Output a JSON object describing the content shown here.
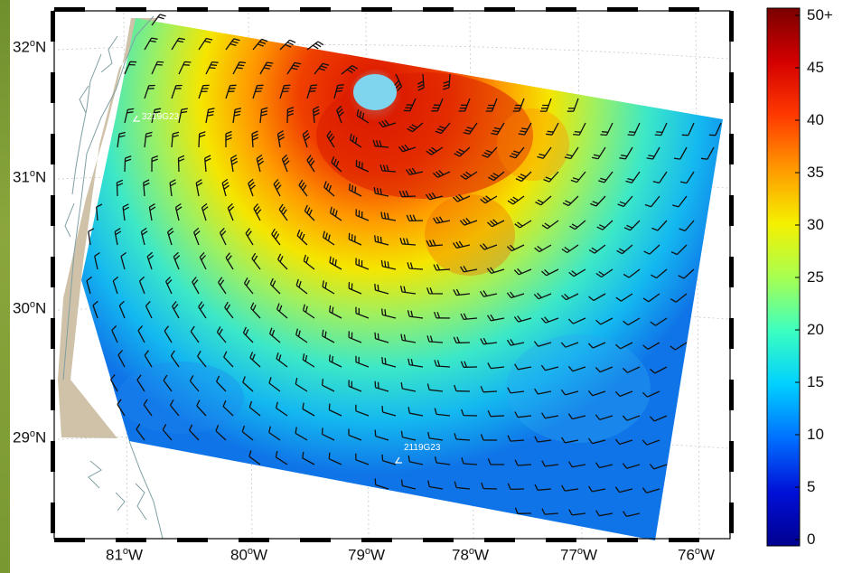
{
  "map": {
    "lat_labels": [
      {
        "deg": "32",
        "hemi": "N"
      },
      {
        "deg": "31",
        "hemi": "N"
      },
      {
        "deg": "30",
        "hemi": "N"
      },
      {
        "deg": "29",
        "hemi": "N"
      }
    ],
    "lon_labels": [
      {
        "deg": "81",
        "hemi": "W"
      },
      {
        "deg": "80",
        "hemi": "W"
      },
      {
        "deg": "79",
        "hemi": "W"
      },
      {
        "deg": "78",
        "hemi": "W"
      },
      {
        "deg": "77",
        "hemi": "W"
      },
      {
        "deg": "76",
        "hemi": "W"
      }
    ],
    "stations": [
      {
        "id": "3219G23"
      },
      {
        "id": "2119G23"
      }
    ],
    "land_color": "#cfc2a8",
    "coast_color": "#7f9fa3",
    "barb_color": "#111111"
  },
  "colorbar": {
    "labels": [
      "50+",
      "45",
      "40",
      "35",
      "30",
      "25",
      "20",
      "15",
      "10",
      "5",
      "0"
    ],
    "colors": [
      "#7a0000",
      "#d40000",
      "#ff3a00",
      "#ff9a00",
      "#f5f000",
      "#a8ff50",
      "#3cffc0",
      "#00d0ff",
      "#0070ff",
      "#0010d8",
      "#00008f"
    ]
  }
}
